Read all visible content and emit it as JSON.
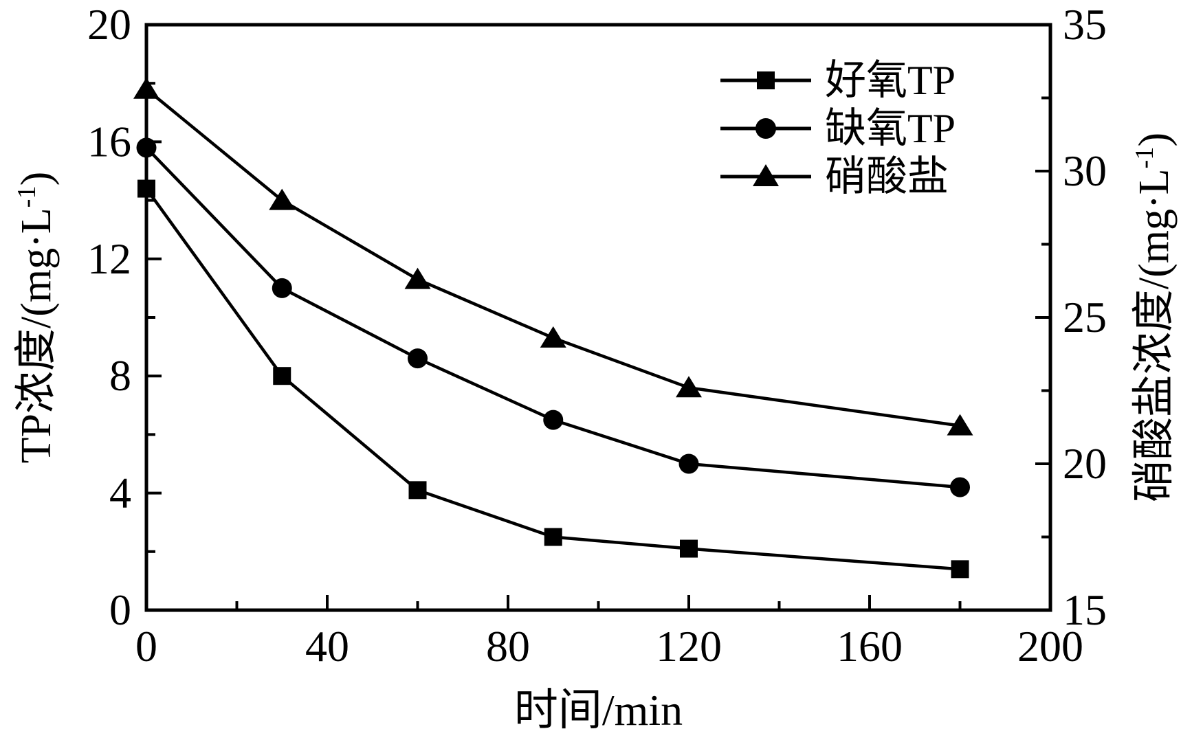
{
  "chart_data": {
    "type": "line",
    "title": "",
    "x": [
      0,
      30,
      60,
      90,
      120,
      180
    ],
    "series": [
      {
        "id": "aerobic-tp",
        "name": "好氧TP",
        "marker": "square",
        "axis": "left",
        "values": [
          14.4,
          8.0,
          4.1,
          2.5,
          2.1,
          1.4
        ]
      },
      {
        "id": "anoxic-tp",
        "name": "缺氧TP",
        "marker": "circle",
        "axis": "left",
        "values": [
          15.8,
          11.0,
          8.6,
          6.5,
          5.0,
          4.2
        ]
      },
      {
        "id": "nitrate",
        "name": "硝酸盐",
        "marker": "triangle",
        "axis": "right",
        "values": [
          32.8,
          29.0,
          26.3,
          24.3,
          22.6,
          21.3
        ]
      }
    ],
    "x_axis": {
      "label": "时间/min",
      "range": [
        0,
        200
      ],
      "ticks": [
        0,
        40,
        80,
        120,
        160,
        200
      ],
      "minor_ticks": [
        20,
        60,
        100,
        140,
        180
      ]
    },
    "y_left": {
      "label_pre": "TP浓度/(mg·L",
      "label_sup": "-1",
      "label_post": ")",
      "range": [
        0,
        20
      ],
      "ticks": [
        0,
        4,
        8,
        12,
        16,
        20
      ],
      "minor_ticks": [
        2,
        6,
        10,
        14,
        18
      ]
    },
    "y_right": {
      "label_pre": "硝酸盐浓度/(mg·L",
      "label_sup": "-1",
      "label_post": ")",
      "range": [
        15,
        35
      ],
      "ticks": [
        15,
        20,
        25,
        30,
        35
      ],
      "minor_ticks": [
        17.5,
        22.5,
        27.5,
        32.5
      ]
    },
    "legend_position": "top-right-inside",
    "grid": false,
    "colors": {
      "foreground": "#000000",
      "background": "#ffffff"
    }
  }
}
